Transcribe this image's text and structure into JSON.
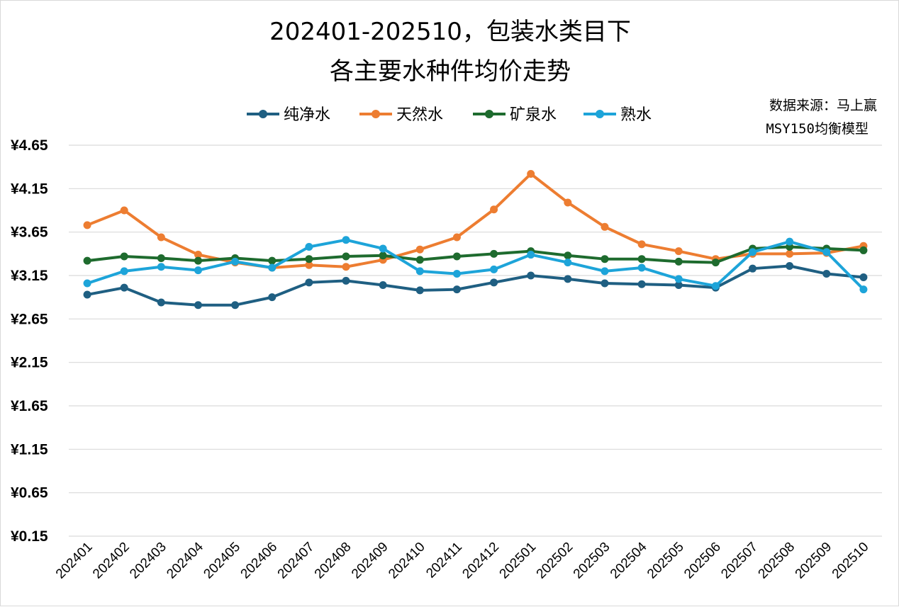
{
  "chart_data": {
    "type": "line",
    "title_lines": [
      "202401-202510，包装水类目下",
      "各主要水种件均价走势"
    ],
    "source_lines": [
      "数据来源：马上赢",
      "MSY150均衡模型"
    ],
    "categories": [
      "202401",
      "202402",
      "202403",
      "202404",
      "202405",
      "202406",
      "202407",
      "202408",
      "202409",
      "202410",
      "202411",
      "202412",
      "202501",
      "202502",
      "202503",
      "202504",
      "202505",
      "202506",
      "202507",
      "202508",
      "202509",
      "202510"
    ],
    "y_ticks": [
      "¥4.65",
      "¥4.15",
      "¥3.65",
      "¥3.15",
      "¥2.65",
      "¥2.15",
      "¥1.65",
      "¥1.15",
      "¥0.65",
      "¥0.15"
    ],
    "y_tick_values": [
      4.65,
      4.15,
      3.65,
      3.15,
      2.65,
      2.15,
      1.65,
      1.15,
      0.65,
      0.15
    ],
    "ylim": [
      0.15,
      4.65
    ],
    "grid": true,
    "legend_position": "top",
    "series": [
      {
        "name": "纯净水",
        "color": "#1f5f82",
        "values": [
          2.93,
          3.01,
          2.84,
          2.81,
          2.81,
          2.9,
          3.07,
          3.09,
          3.04,
          2.98,
          2.99,
          3.07,
          3.15,
          3.11,
          3.06,
          3.05,
          3.04,
          3.01,
          3.23,
          3.26,
          3.17,
          3.13
        ]
      },
      {
        "name": "天然水",
        "color": "#ed7d31",
        "values": [
          3.73,
          3.9,
          3.59,
          3.39,
          3.3,
          3.24,
          3.27,
          3.25,
          3.33,
          3.45,
          3.59,
          3.91,
          4.32,
          3.99,
          3.71,
          3.51,
          3.43,
          3.34,
          3.4,
          3.4,
          3.41,
          3.49
        ]
      },
      {
        "name": "矿泉水",
        "color": "#1e6b2e",
        "values": [
          3.32,
          3.37,
          3.35,
          3.32,
          3.35,
          3.32,
          3.34,
          3.37,
          3.38,
          3.33,
          3.37,
          3.4,
          3.43,
          3.38,
          3.34,
          3.34,
          3.31,
          3.3,
          3.46,
          3.48,
          3.46,
          3.44
        ]
      },
      {
        "name": "熟水",
        "color": "#1da4d9",
        "values": [
          3.06,
          3.2,
          3.25,
          3.21,
          3.31,
          3.24,
          3.48,
          3.56,
          3.46,
          3.2,
          3.17,
          3.22,
          3.39,
          3.3,
          3.2,
          3.24,
          3.11,
          3.03,
          3.42,
          3.54,
          3.42,
          2.99
        ]
      }
    ]
  }
}
